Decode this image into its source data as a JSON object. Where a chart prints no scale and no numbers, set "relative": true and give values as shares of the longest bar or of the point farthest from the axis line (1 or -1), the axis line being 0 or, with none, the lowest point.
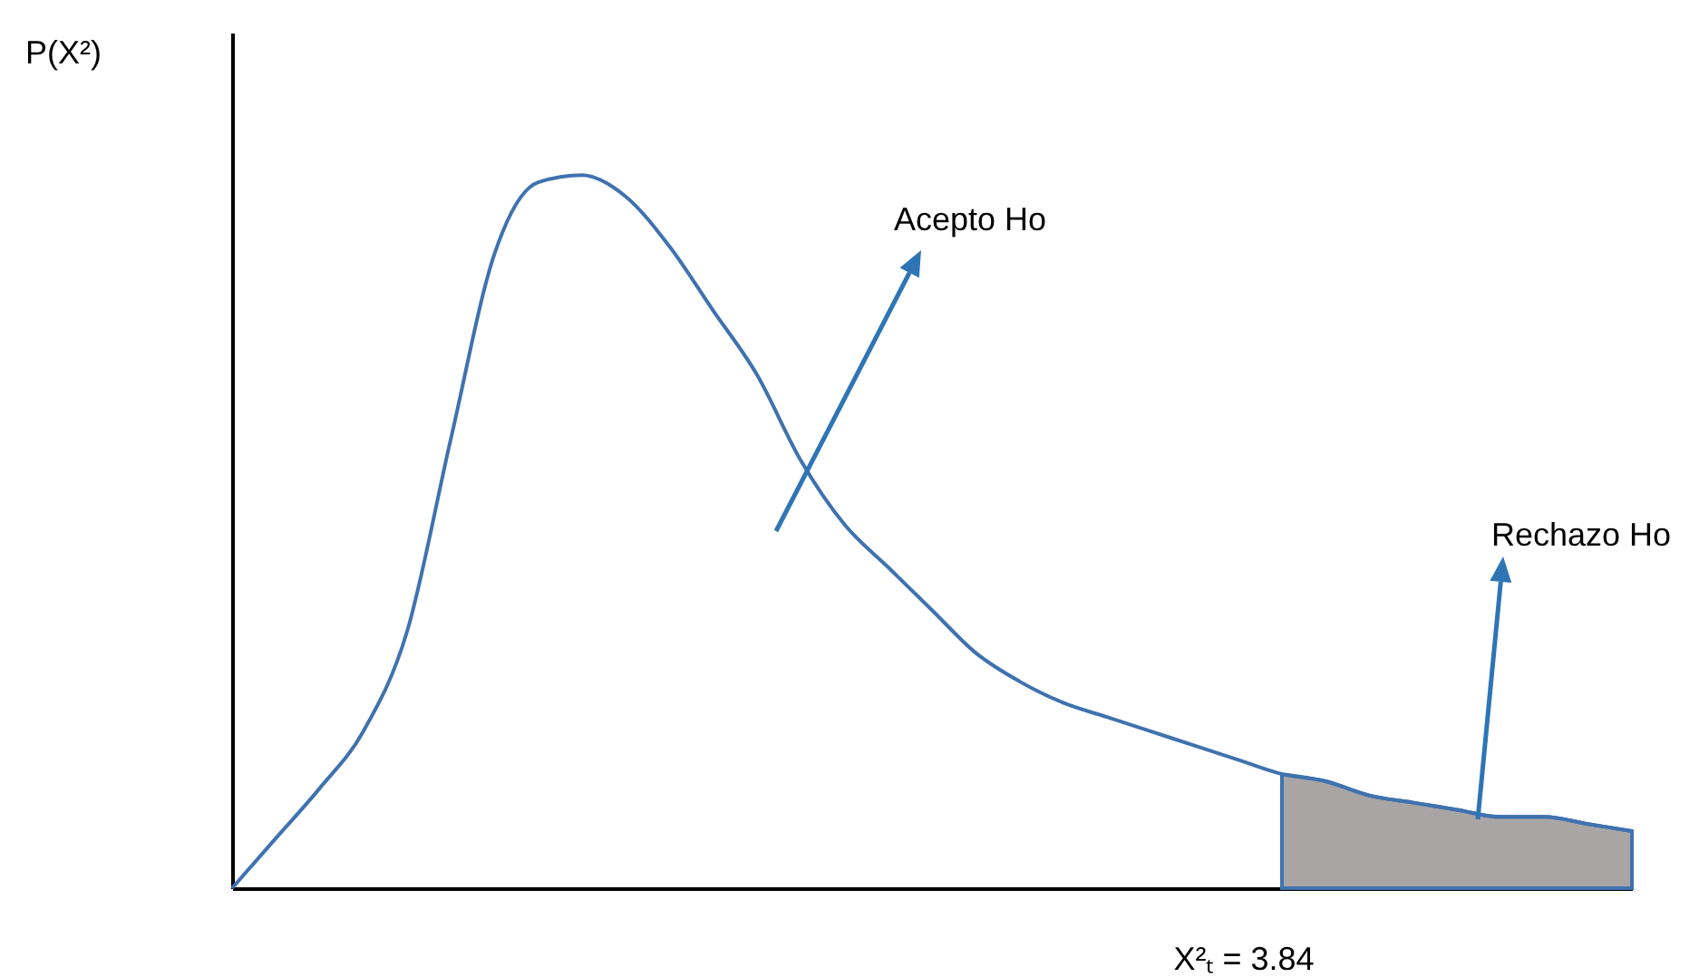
{
  "chart_data": {
    "type": "line",
    "relative": true,
    "grid": false,
    "categories": [
      null,
      null,
      null,
      null,
      null,
      null,
      null,
      null,
      null,
      null,
      null,
      null,
      null,
      null,
      null,
      null,
      null,
      null,
      null,
      null,
      null,
      null,
      null,
      null,
      null,
      null,
      null,
      null,
      null,
      null,
      null,
      null,
      null
    ],
    "series": [
      {
        "color": "#3f72af",
        "values": [
          0,
          0.07,
          0.14,
          0.22,
          0.36,
          0.63,
          0.89,
          0.99,
          1,
          0.97,
          0.9,
          0.81,
          0.72,
          0.6,
          0.51,
          0.45,
          0.39,
          0.33,
          0.29,
          0.26,
          0.24,
          0.22,
          0.2,
          0.18,
          0.16,
          0.15,
          0.13,
          0.12,
          0.11,
          0.1,
          0.1,
          0.09,
          0.08
        ]
      },
      {
        "type": "area",
        "color": "#aaa5a5",
        "values": [
          null,
          null,
          null,
          null,
          null,
          null,
          null,
          null,
          null,
          null,
          null,
          null,
          null,
          null,
          null,
          null,
          null,
          null,
          null,
          null,
          null,
          null,
          null,
          null,
          0.16,
          0.15,
          0.13,
          0.12,
          0.11,
          0.1,
          0.1,
          0.09,
          0.08
        ]
      }
    ],
    "annotations": [
      "P(X²)",
      "Acepto Ho",
      "Rechazo Ho",
      "X²ₜ = 3.84"
    ]
  }
}
